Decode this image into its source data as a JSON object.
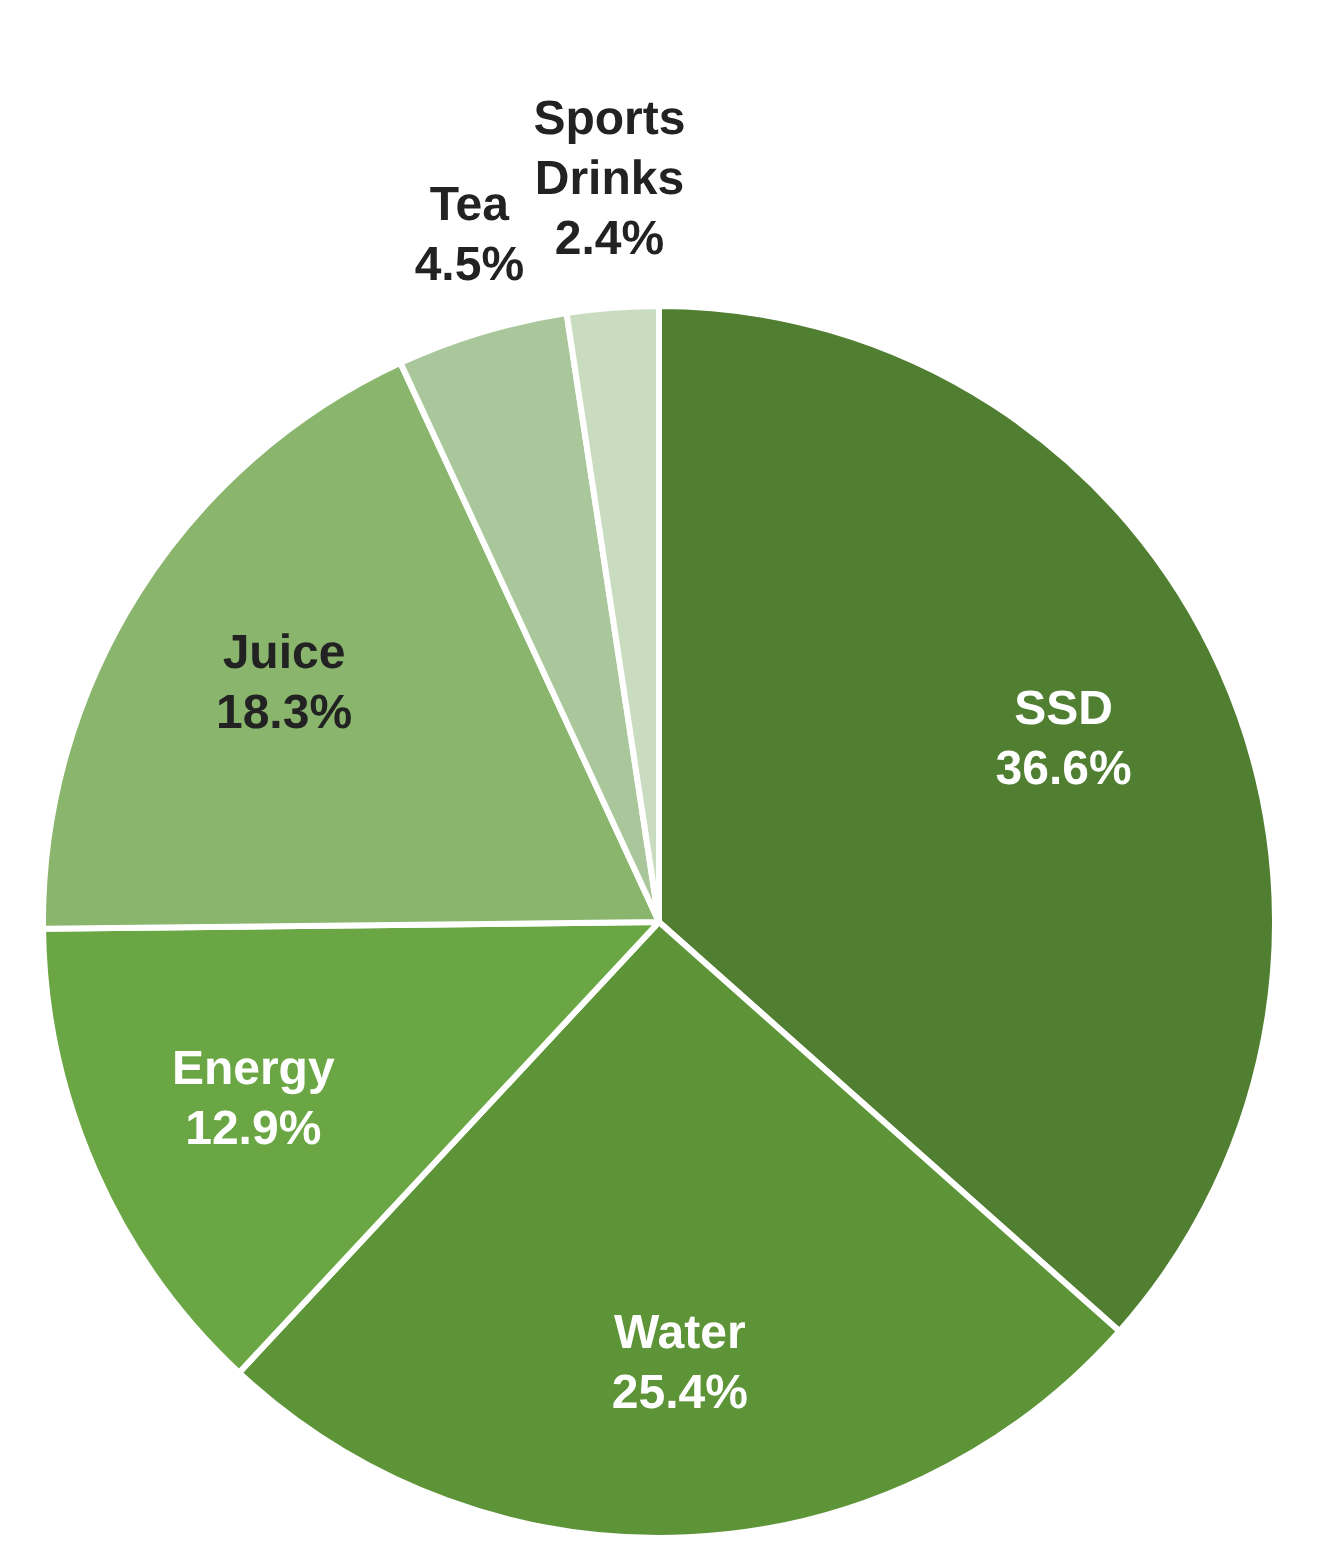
{
  "chart_data": {
    "type": "pie",
    "categories": [
      "SSD",
      "Water",
      "Energy",
      "Juice",
      "Tea",
      "Sports Drinks"
    ],
    "values": [
      36.6,
      25.4,
      12.9,
      18.3,
      4.5,
      2.4
    ],
    "value_labels": [
      "36.6%",
      "25.4%",
      "12.9%",
      "18.3%",
      "4.5%",
      "2.4%"
    ],
    "colors": [
      "#507f32",
      "#5e9438",
      "#6aa744",
      "#8ab56d",
      "#a9c79a",
      "#c9dcc0"
    ],
    "legend": false
  }
}
